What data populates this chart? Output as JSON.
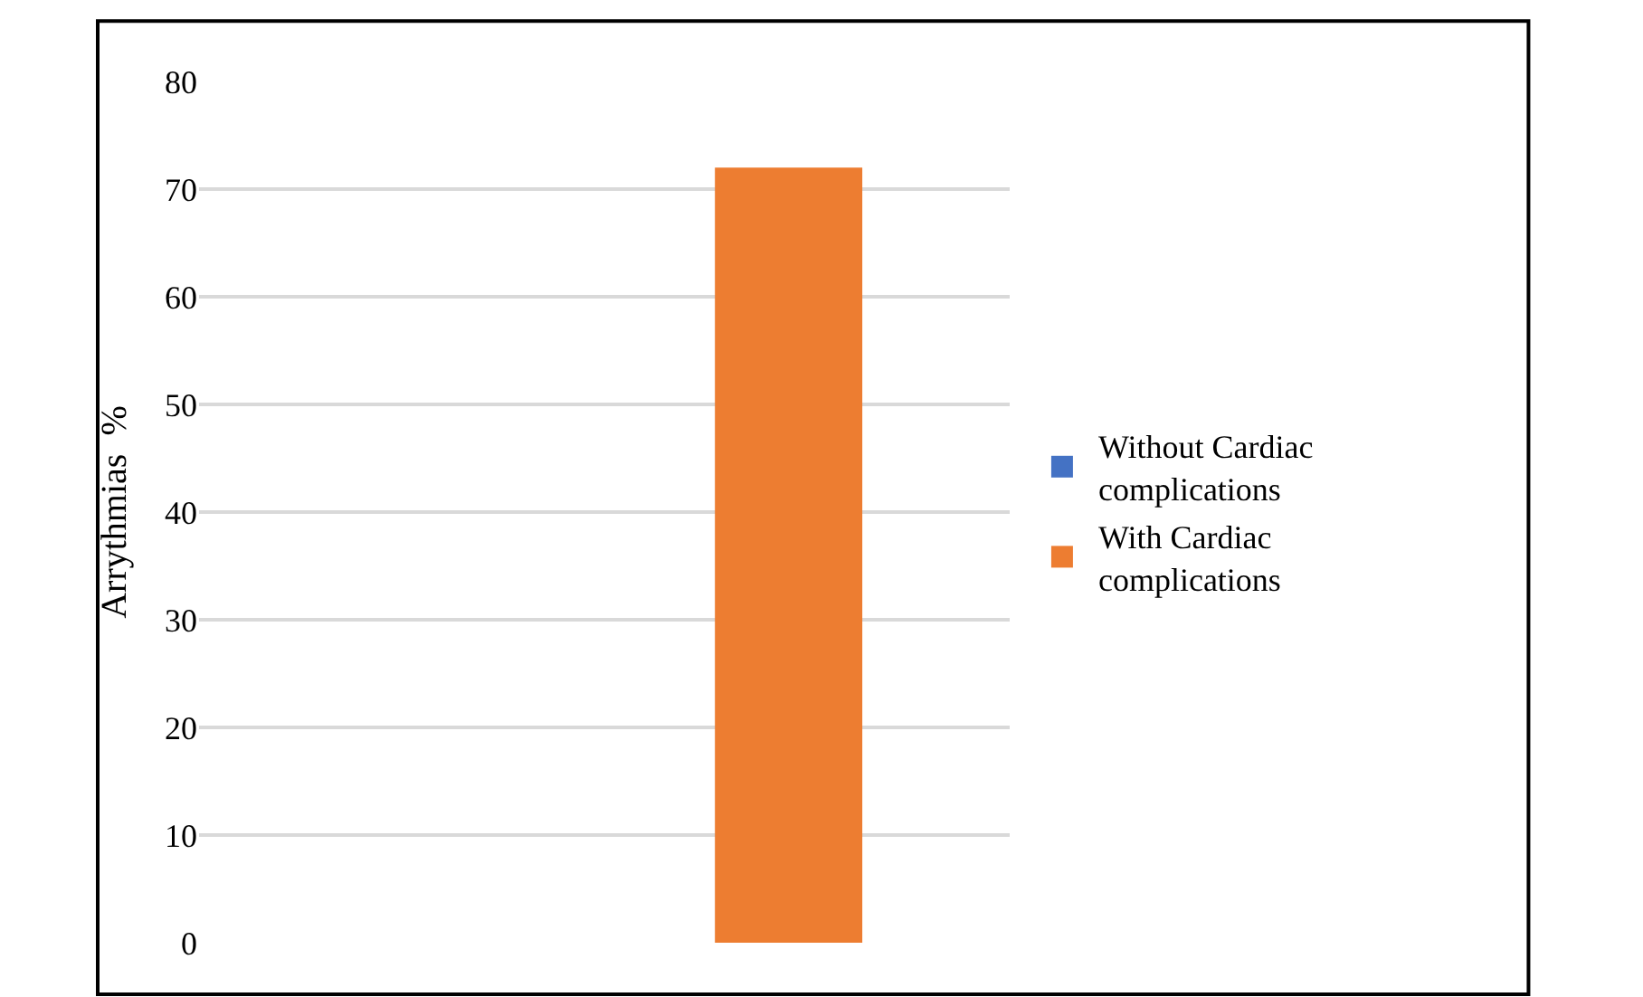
{
  "chart_data": {
    "type": "bar",
    "ylabel": "Arrythmias  %",
    "categories": [
      null,
      null
    ],
    "series": [
      {
        "name": "Without Cardiac complications",
        "color": "#4472c4",
        "values": [
          0,
          null
        ]
      },
      {
        "name": "With Cardiac complications",
        "color": "#ed7d31",
        "values": [
          null,
          72
        ]
      }
    ],
    "ylim": [
      0,
      80
    ],
    "yticks": [
      0,
      10,
      20,
      30,
      40,
      50,
      60,
      70,
      80
    ],
    "grid": "y",
    "legend": "right"
  }
}
